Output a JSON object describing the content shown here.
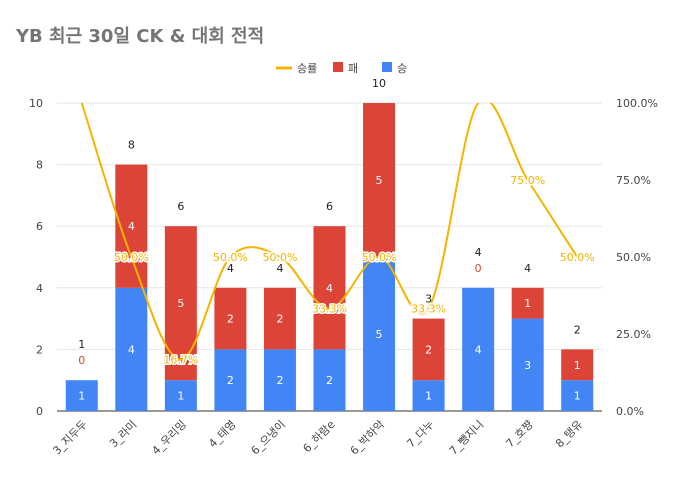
{
  "chart_data": {
    "type": "bar",
    "title": "YB 최근 30일 CK & 대회 전적",
    "categories": [
      "3_지두두",
      "3_라미",
      "4_우리밍",
      "4_태영",
      "6_으냉이",
      "6_하람e",
      "6_박하악",
      "7_다누",
      "7_뺑지니",
      "7_호쨩",
      "8_탱유"
    ],
    "series": [
      {
        "name": "승",
        "type": "bar",
        "stack": true,
        "color": "#4285f4",
        "values": [
          1,
          4,
          1,
          2,
          2,
          2,
          5,
          1,
          4,
          3,
          1
        ]
      },
      {
        "name": "패",
        "type": "bar",
        "stack": true,
        "color": "#db4437",
        "values": [
          0,
          4,
          5,
          2,
          2,
          4,
          5,
          2,
          0,
          1,
          1
        ]
      },
      {
        "name": "승률",
        "type": "line",
        "smooth": true,
        "axis": "right",
        "color": "#f4b400",
        "values": [
          100,
          50,
          16.7,
          50,
          50,
          33.3,
          50,
          33.3,
          100,
          75,
          50
        ]
      }
    ],
    "totals": [
      1,
      8,
      6,
      4,
      4,
      6,
      10,
      3,
      4,
      4,
      2
    ],
    "rate_labels": [
      "",
      "50.0%",
      "16.7%",
      "50.0%",
      "50.0%",
      "33.3%",
      "50.0%",
      "33.3%",
      "",
      "75.0%",
      "50.0%"
    ],
    "ylim": [
      0,
      10
    ],
    "yticks": [
      "0",
      "2",
      "4",
      "6",
      "8",
      "10"
    ],
    "y2lim": [
      0,
      100
    ],
    "y2ticks": [
      "0.0%",
      "25.0%",
      "50.0%",
      "75.0%",
      "100.0%"
    ],
    "legend": {
      "position": "top-right",
      "entries": [
        "승률",
        "패",
        "승"
      ]
    },
    "grid": true
  }
}
